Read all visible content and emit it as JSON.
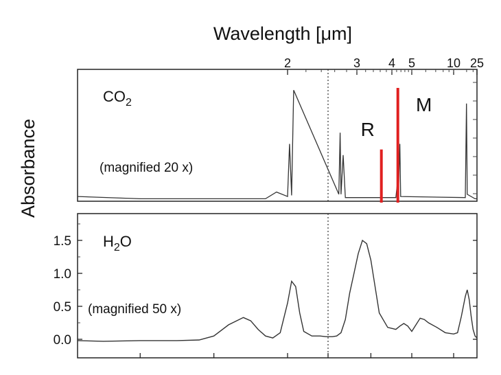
{
  "chart_data": [
    {
      "type": "line",
      "title": "",
      "top_axis_label": "Wavelength [μm]",
      "top_tick_labels": [
        {
          "label": "2",
          "wavenumber": 5000
        },
        {
          "label": "3",
          "wavenumber": 3333
        },
        {
          "label": "4",
          "wavenumber": 2500
        },
        {
          "label": "5",
          "wavenumber": 2000
        },
        {
          "label": "10",
          "wavenumber": 1000
        },
        {
          "label": "25",
          "wavenumber": 400
        }
      ],
      "ylabel": "Absorbance",
      "panel_label": "CO",
      "panel_label_sub": "2",
      "magnification_note": "(magnified 20 x)",
      "region_labels": [
        "R",
        "M"
      ],
      "x_scale": "wavenumber (cm-1), decreasing to the right",
      "xlim": [
        7850,
        400
      ],
      "ylim": [
        0,
        1.0
      ],
      "y_ticks_labelled": false,
      "axis_break_at": 4000,
      "series": [
        {
          "x": [
            7850,
            7000,
            6000,
            5300,
            5150,
            5000,
            4950,
            4900,
            4850,
            3750,
            3720,
            3700,
            3650,
            3600,
            2400,
            2360,
            2340,
            2330,
            2300,
            2280,
            700,
            670,
            650,
            450,
            400
          ],
          "y": [
            0.03,
            0.01,
            0.01,
            0.01,
            0.07,
            0.03,
            0.5,
            0.04,
            0.98,
            0.05,
            0.6,
            0.05,
            0.4,
            0.02,
            0.02,
            0.15,
            0.98,
            0.15,
            0.5,
            0.03,
            0.02,
            0.86,
            0.05,
            0.01,
            0.01
          ]
        }
      ],
      "markers": [
        {
          "label": "R",
          "wavenumber": 2750,
          "height": 0.45,
          "color": "#e02020"
        },
        {
          "label": "M",
          "wavenumber": 2350,
          "height": 1.0,
          "color": "#e02020"
        }
      ]
    },
    {
      "type": "line",
      "title": "",
      "panel_label": "H",
      "panel_label_sub": "2",
      "panel_label_tail": "O",
      "magnification_note": "(magnified 50 x)",
      "ylabel": "Absorbance",
      "y_tick_labels": [
        "0.0",
        "0.5",
        "1.0",
        "1.5"
      ],
      "ylim": [
        -0.15,
        1.85
      ],
      "xlim": [
        7850,
        400
      ],
      "axis_break_at": 4000,
      "series": [
        {
          "x": [
            7850,
            7500,
            7000,
            6500,
            6200,
            6000,
            5800,
            5600,
            5500,
            5400,
            5300,
            5200,
            5100,
            5000,
            4900,
            4800,
            4700,
            4600,
            4400,
            4200,
            4050,
            3900,
            3800,
            3700,
            3600,
            3500,
            3400,
            3300,
            3200,
            3100,
            3000,
            2900,
            2800,
            2600,
            2400,
            2300,
            2200,
            2100,
            2000,
            1900,
            1800,
            1700,
            1600,
            1400,
            1200,
            1000,
            900,
            800,
            700,
            650,
            600,
            550,
            500,
            450,
            400
          ],
          "y": [
            -0.02,
            -0.03,
            -0.02,
            -0.02,
            -0.01,
            0.05,
            0.22,
            0.33,
            0.28,
            0.15,
            0.05,
            0.02,
            0.1,
            0.55,
            0.88,
            0.8,
            0.4,
            0.12,
            0.05,
            0.05,
            0.04,
            0.04,
            0.05,
            0.1,
            0.3,
            0.7,
            1.0,
            1.3,
            1.5,
            1.45,
            1.2,
            0.8,
            0.4,
            0.18,
            0.15,
            0.2,
            0.24,
            0.2,
            0.12,
            0.22,
            0.32,
            0.3,
            0.25,
            0.18,
            0.1,
            0.08,
            0.1,
            0.35,
            0.65,
            0.75,
            0.6,
            0.35,
            0.15,
            0.05,
            0.02
          ]
        }
      ]
    }
  ]
}
